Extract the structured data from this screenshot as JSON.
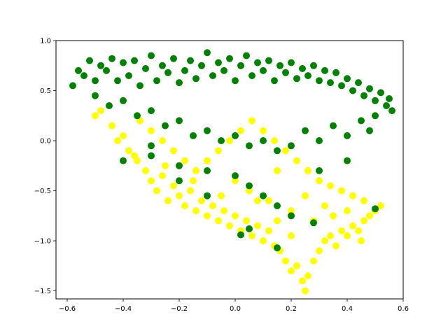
{
  "chart_data": {
    "type": "scatter",
    "title": "",
    "xlabel": "",
    "ylabel": "",
    "xlim": [
      -0.64,
      0.6
    ],
    "ylim": [
      -1.58,
      1.0
    ],
    "x_ticks": [
      -0.6,
      -0.4,
      -0.2,
      0.0,
      0.2,
      0.4,
      0.6
    ],
    "x_tick_labels": [
      "−0.6",
      "−0.4",
      "−0.2",
      "0.0",
      "0.2",
      "0.4",
      "0.6"
    ],
    "y_ticks": [
      -1.5,
      -1.0,
      -0.5,
      0.0,
      0.5,
      1.0
    ],
    "y_tick_labels": [
      "−1.5",
      "−1.0",
      "−0.5",
      "0.0",
      "0.5",
      "1.0"
    ],
    "grid": false,
    "series": [
      {
        "color": "#ffff00",
        "points": [
          [
            -0.48,
            0.3
          ],
          [
            -0.44,
            0.15
          ],
          [
            -0.4,
            0.05
          ],
          [
            -0.38,
            -0.1
          ],
          [
            -0.35,
            -0.2
          ],
          [
            -0.32,
            -0.3
          ],
          [
            -0.3,
            -0.4
          ],
          [
            -0.28,
            -0.5
          ],
          [
            -0.26,
            -0.35
          ],
          [
            -0.24,
            -0.6
          ],
          [
            -0.22,
            -0.45
          ],
          [
            -0.2,
            -0.55
          ],
          [
            -0.18,
            -0.65
          ],
          [
            -0.16,
            -0.5
          ],
          [
            -0.14,
            -0.7
          ],
          [
            -0.12,
            -0.6
          ],
          [
            -0.1,
            -0.75
          ],
          [
            -0.08,
            -0.65
          ],
          [
            -0.06,
            -0.8
          ],
          [
            -0.04,
            -0.7
          ],
          [
            -0.02,
            -0.85
          ],
          [
            0.0,
            -0.75
          ],
          [
            0.02,
            -0.9
          ],
          [
            0.04,
            -0.8
          ],
          [
            0.06,
            -0.95
          ],
          [
            0.08,
            -0.85
          ],
          [
            0.1,
            -1.0
          ],
          [
            0.12,
            -0.9
          ],
          [
            0.14,
            -1.05
          ],
          [
            0.16,
            -1.1
          ],
          [
            0.18,
            -1.2
          ],
          [
            0.2,
            -1.3
          ],
          [
            0.22,
            -1.25
          ],
          [
            0.24,
            -1.4
          ],
          [
            0.25,
            -1.5
          ],
          [
            0.26,
            -1.35
          ],
          [
            0.28,
            -1.2
          ],
          [
            0.3,
            -1.1
          ],
          [
            0.32,
            -1.0
          ],
          [
            0.34,
            -0.95
          ],
          [
            0.36,
            -1.05
          ],
          [
            0.38,
            -0.9
          ],
          [
            0.4,
            -0.95
          ],
          [
            0.42,
            -0.85
          ],
          [
            0.44,
            -0.9
          ],
          [
            0.46,
            -0.8
          ],
          [
            0.48,
            -0.75
          ],
          [
            0.5,
            -0.7
          ],
          [
            0.52,
            -0.65
          ],
          [
            0.46,
            -0.6
          ],
          [
            0.42,
            -0.55
          ],
          [
            0.38,
            -0.5
          ],
          [
            0.34,
            -0.45
          ],
          [
            0.3,
            -0.4
          ],
          [
            0.26,
            -0.3
          ],
          [
            0.22,
            -0.2
          ],
          [
            0.18,
            -0.1
          ],
          [
            0.14,
            0.0
          ],
          [
            0.1,
            0.1
          ],
          [
            0.06,
            0.2
          ],
          [
            0.02,
            0.1
          ],
          [
            -0.02,
            0.0
          ],
          [
            -0.06,
            -0.1
          ],
          [
            -0.1,
            -0.2
          ],
          [
            -0.14,
            -0.3
          ],
          [
            -0.18,
            -0.2
          ],
          [
            -0.22,
            -0.1
          ],
          [
            -0.26,
            0.0
          ],
          [
            -0.3,
            0.1
          ],
          [
            -0.34,
            0.2
          ],
          [
            -0.5,
            0.25
          ],
          [
            -0.42,
            0.0
          ],
          [
            -0.36,
            -0.15
          ],
          [
            -0.25,
            -0.25
          ],
          [
            -0.15,
            -0.4
          ],
          [
            0.05,
            -0.5
          ],
          [
            0.12,
            -0.6
          ],
          [
            0.2,
            -0.7
          ],
          [
            0.28,
            -0.8
          ],
          [
            0.35,
            -0.75
          ],
          [
            0.15,
            -0.3
          ],
          [
            0.25,
            -0.55
          ],
          [
            0.32,
            -0.65
          ],
          [
            0.4,
            -0.7
          ],
          [
            0.45,
            -1.0
          ],
          [
            0.2,
            -0.95
          ],
          [
            0.15,
            -0.8
          ],
          [
            0.08,
            -0.6
          ],
          [
            -0.05,
            -0.55
          ],
          [
            0.0,
            -0.4
          ]
        ]
      },
      {
        "color": "#008000",
        "points": [
          [
            -0.58,
            0.55
          ],
          [
            -0.56,
            0.7
          ],
          [
            -0.54,
            0.65
          ],
          [
            -0.52,
            0.8
          ],
          [
            -0.5,
            0.6
          ],
          [
            -0.48,
            0.75
          ],
          [
            -0.46,
            0.7
          ],
          [
            -0.44,
            0.82
          ],
          [
            -0.42,
            0.6
          ],
          [
            -0.4,
            0.78
          ],
          [
            -0.38,
            0.65
          ],
          [
            -0.36,
            0.8
          ],
          [
            -0.34,
            0.55
          ],
          [
            -0.32,
            0.72
          ],
          [
            -0.3,
            0.85
          ],
          [
            -0.28,
            0.6
          ],
          [
            -0.26,
            0.75
          ],
          [
            -0.24,
            0.68
          ],
          [
            -0.22,
            0.82
          ],
          [
            -0.2,
            0.58
          ],
          [
            -0.18,
            0.7
          ],
          [
            -0.16,
            0.8
          ],
          [
            -0.14,
            0.62
          ],
          [
            -0.12,
            0.75
          ],
          [
            -0.1,
            0.88
          ],
          [
            -0.08,
            0.65
          ],
          [
            -0.06,
            0.78
          ],
          [
            -0.04,
            0.7
          ],
          [
            -0.02,
            0.82
          ],
          [
            0.0,
            0.6
          ],
          [
            0.02,
            0.75
          ],
          [
            0.04,
            0.85
          ],
          [
            0.06,
            0.65
          ],
          [
            0.08,
            0.78
          ],
          [
            0.1,
            0.7
          ],
          [
            0.12,
            0.8
          ],
          [
            0.14,
            0.6
          ],
          [
            0.16,
            0.75
          ],
          [
            0.18,
            0.68
          ],
          [
            0.2,
            0.78
          ],
          [
            0.22,
            0.62
          ],
          [
            0.24,
            0.72
          ],
          [
            0.26,
            0.65
          ],
          [
            0.28,
            0.75
          ],
          [
            0.3,
            0.6
          ],
          [
            0.32,
            0.7
          ],
          [
            0.34,
            0.58
          ],
          [
            0.36,
            0.68
          ],
          [
            0.38,
            0.55
          ],
          [
            0.4,
            0.62
          ],
          [
            0.42,
            0.5
          ],
          [
            0.44,
            0.58
          ],
          [
            0.46,
            0.45
          ],
          [
            0.48,
            0.52
          ],
          [
            0.5,
            0.4
          ],
          [
            0.52,
            0.48
          ],
          [
            0.54,
            0.35
          ],
          [
            0.56,
            0.3
          ],
          [
            0.55,
            0.42
          ],
          [
            0.5,
            0.25
          ],
          [
            -0.5,
            0.45
          ],
          [
            -0.45,
            0.35
          ],
          [
            -0.4,
            0.4
          ],
          [
            -0.35,
            0.25
          ],
          [
            -0.3,
            0.3
          ],
          [
            -0.25,
            0.15
          ],
          [
            -0.2,
            0.2
          ],
          [
            -0.15,
            0.05
          ],
          [
            -0.1,
            0.1
          ],
          [
            -0.05,
            0.0
          ],
          [
            0.0,
            0.05
          ],
          [
            0.05,
            -0.05
          ],
          [
            0.1,
            0.0
          ],
          [
            0.15,
            -0.1
          ],
          [
            0.2,
            -0.05
          ],
          [
            0.25,
            0.1
          ],
          [
            0.3,
            0.0
          ],
          [
            0.35,
            0.15
          ],
          [
            0.4,
            0.05
          ],
          [
            0.45,
            0.2
          ],
          [
            -0.4,
            -0.2
          ],
          [
            -0.3,
            -0.15
          ],
          [
            -0.2,
            -0.25
          ],
          [
            -0.1,
            -0.3
          ],
          [
            0.0,
            -0.35
          ],
          [
            0.05,
            -0.45
          ],
          [
            0.1,
            -0.55
          ],
          [
            0.15,
            -0.65
          ],
          [
            0.2,
            -0.75
          ],
          [
            0.28,
            -0.82
          ],
          [
            0.02,
            -0.94
          ],
          [
            0.05,
            -0.88
          ],
          [
            0.15,
            -1.07
          ],
          [
            0.5,
            -0.68
          ],
          [
            -0.1,
            -0.55
          ],
          [
            -0.2,
            -0.4
          ],
          [
            -0.3,
            -0.05
          ],
          [
            0.3,
            -0.3
          ],
          [
            0.4,
            -0.2
          ],
          [
            0.48,
            0.1
          ]
        ]
      }
    ]
  }
}
